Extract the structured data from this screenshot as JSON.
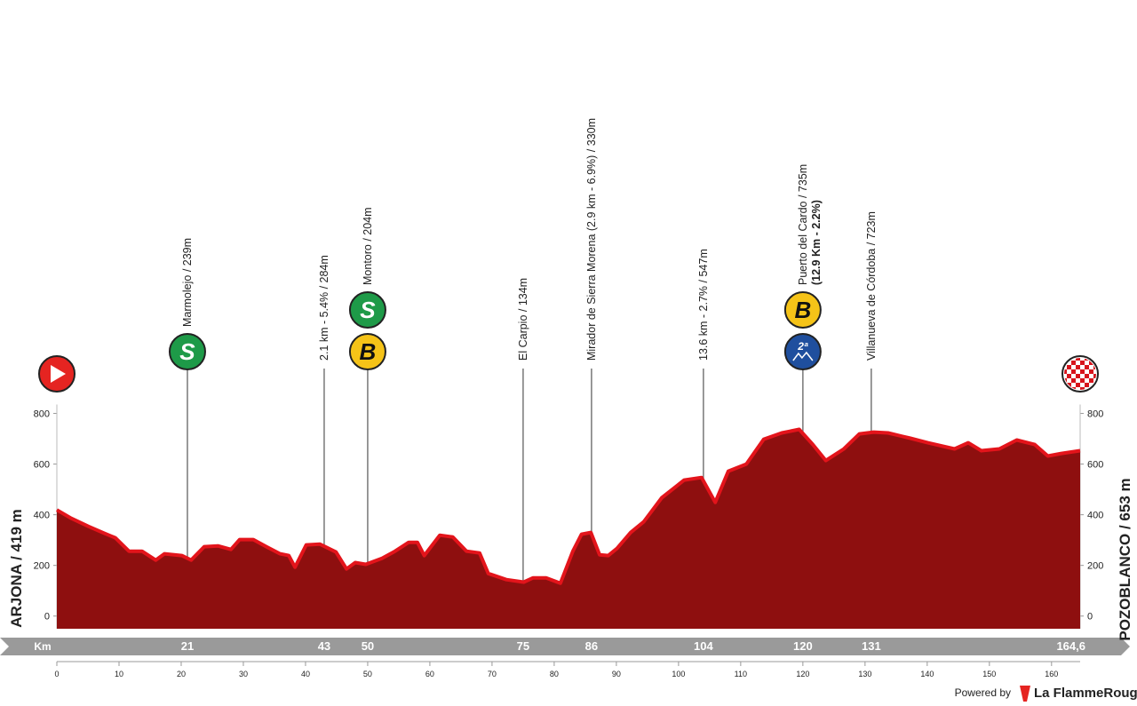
{
  "chart_data": {
    "type": "area",
    "color": "#8e0f0f",
    "edge_color": "#e3141b",
    "start_label": "ARJONA / 419 m",
    "finish_label": "POZOBLANCO / 653 m",
    "x": [
      0,
      2.3,
      5.1,
      7.7,
      9.4,
      11.6,
      13.7,
      15.9,
      17.3,
      20.1,
      21.6,
      23.7,
      25.9,
      28,
      29.4,
      31.6,
      33.7,
      35.9,
      37.3,
      38.3,
      40.1,
      42.3,
      44.9,
      46.6,
      48,
      49.7,
      52.3,
      54.4,
      56.6,
      58,
      59.1,
      61.6,
      63.7,
      65.9,
      68,
      69.4,
      72.3,
      75.1,
      76.6,
      78.7,
      81,
      83,
      84.4,
      85.9,
      87.3,
      88.7,
      90.1,
      92.3,
      94.4,
      97.3,
      100.9,
      103.7,
      105.9,
      108,
      110.9,
      113.7,
      116.6,
      119.4,
      121.6,
      123.7,
      126.6,
      129.1,
      131.4,
      133.7,
      137.3,
      140.1,
      144.4,
      146.6,
      148.7,
      151.6,
      154.4,
      157.3,
      159.4,
      161.6,
      164.6
    ],
    "values": [
      419,
      386,
      354,
      326,
      309,
      256,
      256,
      221,
      246,
      239,
      221,
      274,
      277,
      263,
      302,
      302,
      274,
      246,
      239,
      193,
      281,
      284,
      253,
      186,
      211,
      204,
      228,
      256,
      291,
      291,
      239,
      319,
      312,
      256,
      249,
      168,
      144,
      134,
      151,
      151,
      130,
      256,
      323,
      330,
      242,
      239,
      267,
      330,
      372,
      467,
      537,
      547,
      449,
      572,
      600,
      698,
      723,
      737,
      677,
      614,
      660,
      719,
      726,
      723,
      702,
      684,
      660,
      684,
      653,
      660,
      695,
      677,
      632,
      642,
      653
    ],
    "xlim": [
      0,
      164.6
    ],
    "ylim": [
      -50,
      900
    ],
    "xticks": [
      0,
      10,
      20,
      30,
      40,
      50,
      60,
      70,
      80,
      90,
      100,
      110,
      120,
      130,
      140,
      150,
      160
    ],
    "yticks": [
      0,
      200,
      400,
      600,
      800
    ],
    "km_label": "Km",
    "km_markers": [
      21,
      43,
      50,
      75,
      86,
      104,
      120,
      131,
      {
        "value": 164.6,
        "label": "164,6"
      }
    ],
    "annotations": [
      {
        "km": 21,
        "text": "Marmolejo / 239m",
        "icons": [
          {
            "text": "S",
            "color": "#1e9a48"
          }
        ]
      },
      {
        "km": 43,
        "text": "2.1 km - 5.4% / 284m",
        "icons": []
      },
      {
        "km": 50,
        "text": "Montoro / 204m",
        "icons": [
          {
            "text": "S",
            "color": "#1e9a48"
          },
          {
            "text": "B",
            "color": "#f5c318"
          }
        ]
      },
      {
        "km": 75,
        "text": "El Carpio / 134m",
        "icons": []
      },
      {
        "km": 86,
        "text": "Mirador de Sierra Morena (2.9 km - 6.9%) / 330m",
        "icons": []
      },
      {
        "km": 104,
        "text": "13.6 km - 2.7% / 547m",
        "icons": []
      },
      {
        "km": 120,
        "text": "Puerto del Cardo / 735m",
        "subtext": "(12.9 Km - 2.2%)",
        "icons": [
          {
            "text": "B",
            "color": "#f5c318"
          },
          {
            "text": "2ª",
            "color": "#1f4f9e"
          }
        ]
      },
      {
        "km": 131,
        "text": "Villanueva de Córdoba / 723m",
        "icons": []
      }
    ]
  },
  "footer": {
    "powered": "Powered by",
    "brand": "La FlammeRouge"
  }
}
